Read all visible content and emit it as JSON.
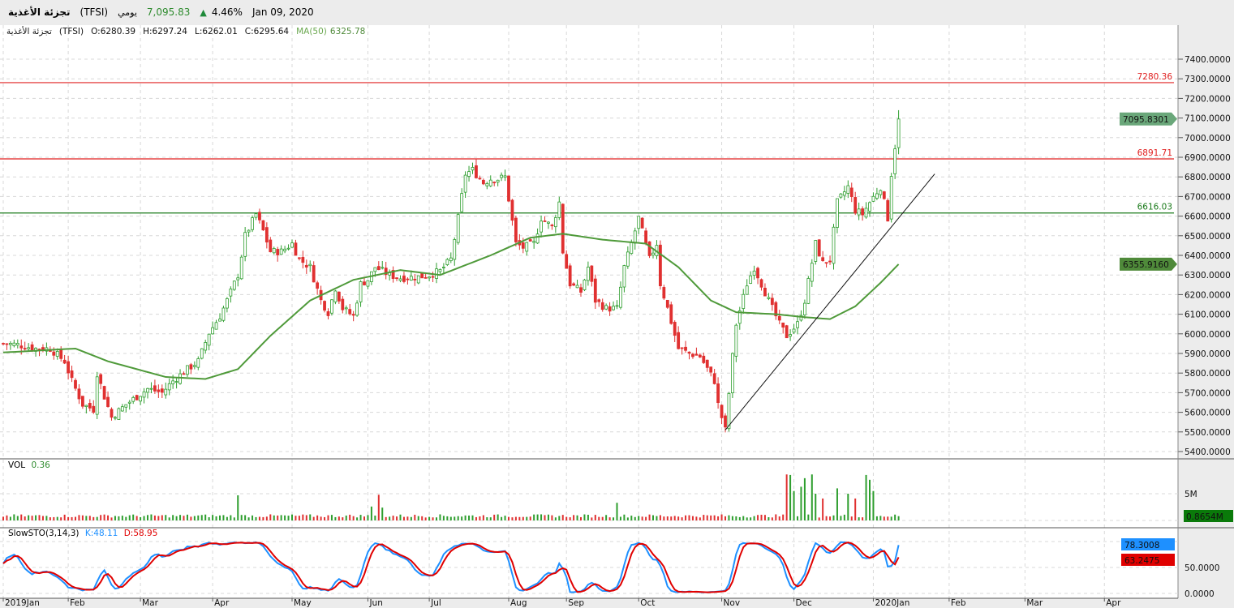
{
  "header": {
    "name": "تجزئة الأغذية",
    "symbol": "(TFSI)",
    "period": "يومي",
    "last": "7,095.83",
    "change": "4.46%",
    "date": "Jan 09, 2020"
  },
  "ohlc_info": {
    "name": "تجزئة الأغذية",
    "symbol": "(TFSI)",
    "open": "O:6280.39",
    "high": "H:6297.24",
    "low": "L:6262.01",
    "close": "C:6295.64",
    "ma_label": "MA(50)",
    "ma_value": "6325.78"
  },
  "volume_info": {
    "label": "VOL",
    "value": "0.36"
  },
  "stoch_info": {
    "label": "SlowSTO(3,14,3)",
    "k": "K:48.11",
    "d": "D:58.95"
  },
  "colors": {
    "up": "#2e9e2e",
    "down": "#e03030",
    "ma": "#4f9a3a",
    "k": "#1e90ff",
    "d": "#e00000",
    "axis_bg": "#ececec"
  },
  "chart_data": {
    "type": "candlestick",
    "title": "تجزئة الأغذية (TFSI) يومي",
    "price_axis": {
      "range": [
        5400,
        7400
      ],
      "ticks": [
        "7400.0000",
        "7300.0000",
        "7200.0000",
        "7100.0000",
        "7000.0000",
        "6900.0000",
        "6800.0000",
        "6700.0000",
        "6600.0000",
        "6500.0000",
        "6400.0000",
        "6300.0000",
        "6200.0000",
        "6100.0000",
        "6000.0000",
        "5900.0000",
        "5800.0000",
        "5700.0000",
        "5600.0000",
        "5500.0000",
        "5400.0000"
      ]
    },
    "x_ticks": [
      {
        "day": 0,
        "label": "2019Jan"
      },
      {
        "day": 18,
        "label": "Feb"
      },
      {
        "day": 38,
        "label": "Mar"
      },
      {
        "day": 58,
        "label": "Apr"
      },
      {
        "day": 80,
        "label": "May"
      },
      {
        "day": 101,
        "label": "Jun"
      },
      {
        "day": 118,
        "label": "Jul"
      },
      {
        "day": 140,
        "label": "Aug"
      },
      {
        "day": 156,
        "label": "Sep"
      },
      {
        "day": 176,
        "label": "Oct"
      },
      {
        "day": 199,
        "label": "Nov"
      },
      {
        "day": 219,
        "label": "Dec"
      },
      {
        "day": 241,
        "label": "2020Jan"
      },
      {
        "day": 262,
        "label": "Feb"
      },
      {
        "day": 283,
        "label": "Mar"
      },
      {
        "day": 305,
        "label": "Apr"
      }
    ],
    "close_path": [
      [
        1,
        5950
      ],
      [
        4,
        5945
      ],
      [
        9,
        5925
      ],
      [
        13,
        5925
      ],
      [
        17,
        5860
      ],
      [
        19,
        5760
      ],
      [
        22,
        5640
      ],
      [
        25,
        5615
      ],
      [
        26,
        5800
      ],
      [
        28,
        5680
      ],
      [
        30,
        5575
      ],
      [
        34,
        5640
      ],
      [
        37,
        5680
      ],
      [
        40,
        5720
      ],
      [
        44,
        5700
      ],
      [
        47,
        5760
      ],
      [
        51,
        5820
      ],
      [
        54,
        5860
      ],
      [
        57,
        6005
      ],
      [
        60,
        6090
      ],
      [
        62,
        6170
      ],
      [
        65,
        6300
      ],
      [
        67,
        6500
      ],
      [
        70,
        6610
      ],
      [
        72,
        6525
      ],
      [
        74,
        6420
      ],
      [
        77,
        6420
      ],
      [
        80,
        6460
      ],
      [
        82,
        6380
      ],
      [
        85,
        6340
      ],
      [
        88,
        6170
      ],
      [
        90,
        6110
      ],
      [
        92,
        6235
      ],
      [
        94,
        6130
      ],
      [
        97,
        6090
      ],
      [
        99,
        6255
      ],
      [
        101,
        6275
      ],
      [
        103,
        6340
      ],
      [
        107,
        6300
      ],
      [
        110,
        6285
      ],
      [
        115,
        6290
      ],
      [
        118,
        6300
      ],
      [
        121,
        6320
      ],
      [
        124,
        6380
      ],
      [
        126,
        6590
      ],
      [
        128,
        6815
      ],
      [
        130,
        6835
      ],
      [
        133,
        6770
      ],
      [
        135,
        6790
      ],
      [
        137,
        6790
      ],
      [
        139,
        6800
      ],
      [
        142,
        6460
      ],
      [
        144,
        6440
      ],
      [
        147,
        6460
      ],
      [
        149,
        6590
      ],
      [
        152,
        6545
      ],
      [
        154,
        6670
      ],
      [
        155,
        6420
      ],
      [
        157,
        6255
      ],
      [
        160,
        6215
      ],
      [
        162,
        6340
      ],
      [
        164,
        6170
      ],
      [
        167,
        6130
      ],
      [
        170,
        6130
      ],
      [
        172,
        6340
      ],
      [
        174,
        6460
      ],
      [
        176,
        6590
      ],
      [
        179,
        6380
      ],
      [
        181,
        6460
      ],
      [
        182,
        6255
      ],
      [
        184,
        6130
      ],
      [
        187,
        5925
      ],
      [
        190,
        5900
      ],
      [
        193,
        5885
      ],
      [
        197,
        5760
      ],
      [
        198,
        5640
      ],
      [
        200,
        5510
      ],
      [
        202,
        5885
      ],
      [
        203,
        6050
      ],
      [
        206,
        6255
      ],
      [
        208,
        6340
      ],
      [
        210,
        6255
      ],
      [
        212,
        6170
      ],
      [
        215,
        6050
      ],
      [
        217,
        5990
      ],
      [
        220,
        6050
      ],
      [
        222,
        6170
      ],
      [
        225,
        6460
      ],
      [
        227,
        6360
      ],
      [
        229,
        6380
      ],
      [
        231,
        6670
      ],
      [
        234,
        6750
      ],
      [
        236,
        6630
      ],
      [
        238,
        6610
      ],
      [
        240,
        6670
      ],
      [
        243,
        6750
      ],
      [
        245,
        6590
      ],
      [
        246,
        6815
      ],
      [
        248,
        7095
      ]
    ],
    "ma50_path": [
      [
        0,
        5905
      ],
      [
        20,
        5925
      ],
      [
        29,
        5860
      ],
      [
        45,
        5780
      ],
      [
        56,
        5770
      ],
      [
        65,
        5820
      ],
      [
        74,
        5990
      ],
      [
        85,
        6170
      ],
      [
        97,
        6275
      ],
      [
        110,
        6325
      ],
      [
        121,
        6300
      ],
      [
        135,
        6400
      ],
      [
        146,
        6490
      ],
      [
        155,
        6510
      ],
      [
        166,
        6480
      ],
      [
        178,
        6460
      ],
      [
        187,
        6340
      ],
      [
        196,
        6170
      ],
      [
        203,
        6110
      ],
      [
        214,
        6100
      ],
      [
        222,
        6085
      ],
      [
        229,
        6075
      ],
      [
        236,
        6140
      ],
      [
        243,
        6260
      ],
      [
        248,
        6355
      ]
    ],
    "trendline": [
      [
        200,
        5510
      ],
      [
        258,
        6815
      ]
    ],
    "levels": [
      {
        "value": 7280.36,
        "label": "7280.36",
        "color": "#e02020"
      },
      {
        "value": 6891.71,
        "label": "6891.71",
        "color": "#e02020"
      },
      {
        "value": 6616.03,
        "label": "6616.03",
        "color": "#1a7a1a"
      }
    ],
    "last_price_label": "7095.8301",
    "ma_last_label": "6355.9160",
    "volume": {
      "axis_max": 5,
      "tick_label": "5M",
      "last_label": "0.8654M",
      "base": 0.55,
      "spikes": [
        [
          65,
          4.7
        ],
        [
          102,
          2.6
        ],
        [
          104,
          4.8
        ],
        [
          105,
          2.4
        ],
        [
          170,
          3.3
        ],
        [
          217,
          8.6
        ],
        [
          218,
          8.5
        ],
        [
          219,
          5.5
        ],
        [
          221,
          6.3
        ],
        [
          222,
          7.9
        ],
        [
          224,
          8.6
        ],
        [
          225,
          5.0
        ],
        [
          227,
          4.1
        ],
        [
          231,
          6.0
        ],
        [
          234,
          5.0
        ],
        [
          236,
          4.1
        ],
        [
          239,
          8.5
        ],
        [
          240,
          7.6
        ],
        [
          241,
          5.5
        ]
      ]
    },
    "stoch": {
      "range": [
        0,
        100
      ],
      "ticks": [
        "50.0000",
        "0.0000"
      ],
      "k_label": "78.3008",
      "d_label": "63.2475"
    }
  }
}
